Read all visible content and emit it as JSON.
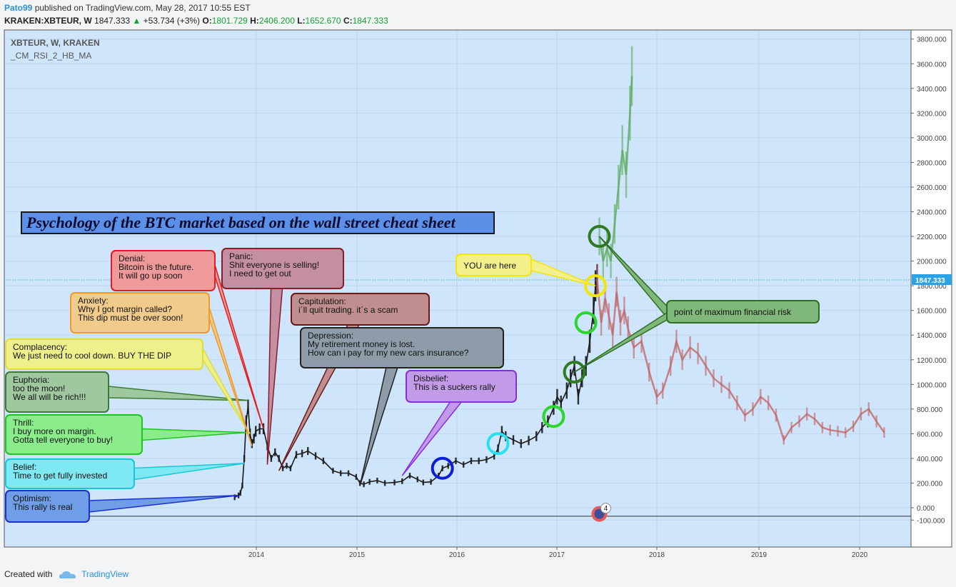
{
  "header": {
    "author": "Pato99",
    "published": "published on TradingView.com, May 28, 2017 10:55 EST"
  },
  "ohlc": {
    "symbol": "KRAKEN:XBTEUR, W",
    "last": "1847.333",
    "change": "+53.734 (+3%)",
    "o_label": "O:",
    "o": "1801.729",
    "h_label": "H:",
    "h": "2406.200",
    "l_label": "L:",
    "l": "1652.670",
    "c_label": "C:",
    "c": "1847.333"
  },
  "panel": {
    "symbol": "XBTEUR, W, KRAKEN",
    "indicator": "_CM_RSI_2_HB_MA"
  },
  "footer": {
    "created_with": "Created with",
    "brand": "TradingView"
  },
  "event_badge": "4",
  "colors": {
    "background": "#cfe5fb",
    "candle_past": "#1a1a1a",
    "candle_future_up": "#5aaa5a",
    "candle_future_down": "#c06060",
    "price_line": "#2a9fd0",
    "price_label_bg": "#2aa3e6"
  },
  "chart_data": {
    "type": "line",
    "title": "Psychology of the BTC market based on the wall street cheat sheet",
    "xlabel": "",
    "ylabel": "",
    "x_ticks": [
      "2014",
      "2015",
      "2016",
      "2017",
      "2018",
      "2019",
      "2020"
    ],
    "y_ticks": [
      "-100.000",
      "0.000",
      "200.000",
      "400.000",
      "600.000",
      "800.000",
      "1000.000",
      "1200.000",
      "1400.000",
      "1600.000",
      "1800.000",
      "2000.000",
      "2200.000",
      "2400.000",
      "2600.000",
      "2800.000",
      "3000.000",
      "3200.000",
      "3400.000",
      "3600.000",
      "3800.000"
    ],
    "ylim": [
      -100,
      3900
    ],
    "last_price_label": "1847.333",
    "last_price": 1847.333,
    "grid": true,
    "series": [
      {
        "name": "",
        "values": [
          [
            "2013-10-14",
            85
          ],
          [
            "2013-10-28",
            100
          ],
          [
            "2013-11-04",
            120
          ],
          [
            "2013-11-11",
            180
          ],
          [
            "2013-11-18",
            400
          ],
          [
            "2013-11-25",
            700
          ],
          [
            "2013-12-02",
            820
          ],
          [
            "2013-12-09",
            600
          ],
          [
            "2013-12-16",
            520
          ],
          [
            "2013-12-23",
            560
          ],
          [
            "2013-12-30",
            620
          ],
          [
            "2014-01-13",
            640
          ],
          [
            "2014-01-27",
            640
          ],
          [
            "2014-02-10",
            500
          ],
          [
            "2014-02-24",
            400
          ],
          [
            "2014-03-10",
            450
          ],
          [
            "2014-03-24",
            400
          ],
          [
            "2014-04-07",
            320
          ],
          [
            "2014-04-21",
            340
          ],
          [
            "2014-05-05",
            320
          ],
          [
            "2014-05-26",
            430
          ],
          [
            "2014-06-16",
            440
          ],
          [
            "2014-07-07",
            460
          ],
          [
            "2014-08-04",
            420
          ],
          [
            "2014-09-01",
            380
          ],
          [
            "2014-10-06",
            300
          ],
          [
            "2014-11-03",
            280
          ],
          [
            "2014-12-01",
            280
          ],
          [
            "2014-12-29",
            250
          ],
          [
            "2015-01-12",
            200
          ],
          [
            "2015-01-26",
            190
          ],
          [
            "2015-02-16",
            210
          ],
          [
            "2015-03-16",
            220
          ],
          [
            "2015-04-13",
            200
          ],
          [
            "2015-05-18",
            205
          ],
          [
            "2015-06-15",
            215
          ],
          [
            "2015-07-13",
            260
          ],
          [
            "2015-08-10",
            230
          ],
          [
            "2015-08-31",
            205
          ],
          [
            "2015-09-28",
            210
          ],
          [
            "2015-10-26",
            260
          ],
          [
            "2015-11-09",
            320
          ],
          [
            "2015-11-30",
            340
          ],
          [
            "2015-12-28",
            380
          ],
          [
            "2016-01-25",
            350
          ],
          [
            "2016-02-22",
            380
          ],
          [
            "2016-03-21",
            380
          ],
          [
            "2016-04-18",
            390
          ],
          [
            "2016-05-16",
            420
          ],
          [
            "2016-05-30",
            480
          ],
          [
            "2016-06-13",
            620
          ],
          [
            "2016-06-27",
            580
          ],
          [
            "2016-07-25",
            550
          ],
          [
            "2016-08-22",
            520
          ],
          [
            "2016-09-19",
            545
          ],
          [
            "2016-10-17",
            580
          ],
          [
            "2016-11-07",
            650
          ],
          [
            "2016-11-28",
            700
          ],
          [
            "2016-12-19",
            810
          ],
          [
            "2017-01-02",
            900
          ],
          [
            "2017-01-16",
            850
          ],
          [
            "2017-02-06",
            950
          ],
          [
            "2017-02-20",
            1050
          ],
          [
            "2017-03-06",
            1150
          ],
          [
            "2017-03-20",
            900
          ],
          [
            "2017-04-03",
            1050
          ],
          [
            "2017-04-17",
            1150
          ],
          [
            "2017-05-01",
            1350
          ],
          [
            "2017-05-15",
            1600
          ],
          [
            "2017-05-22",
            1800
          ],
          [
            "2017-05-28",
            1847
          ]
        ]
      },
      {
        "name": "",
        "values": [
          [
            "2017-06-05",
            2200
          ],
          [
            "2017-06-19",
            2000
          ],
          [
            "2017-07-03",
            2100
          ],
          [
            "2017-07-17",
            2000
          ],
          [
            "2017-07-31",
            2300
          ],
          [
            "2017-08-14",
            2600
          ],
          [
            "2017-08-28",
            2900
          ],
          [
            "2017-09-11",
            2700
          ],
          [
            "2017-09-25",
            3200
          ],
          [
            "2017-10-02",
            3500
          ]
        ]
      },
      {
        "name": "",
        "values": [
          [
            "2017-05-28",
            1847
          ],
          [
            "2017-06-12",
            1500
          ],
          [
            "2017-06-26",
            1700
          ],
          [
            "2017-07-10",
            1550
          ],
          [
            "2017-07-24",
            1400
          ],
          [
            "2017-08-07",
            1750
          ],
          [
            "2017-08-21",
            1500
          ],
          [
            "2017-09-04",
            1600
          ],
          [
            "2017-09-18",
            1450
          ],
          [
            "2017-10-09",
            1300
          ],
          [
            "2017-11-06",
            1350
          ],
          [
            "2017-12-04",
            1100
          ],
          [
            "2018-01-01",
            900
          ],
          [
            "2018-01-22",
            950
          ],
          [
            "2018-02-19",
            1150
          ],
          [
            "2018-03-12",
            1350
          ],
          [
            "2018-04-02",
            1200
          ],
          [
            "2018-04-30",
            1300
          ],
          [
            "2018-05-28",
            1250
          ],
          [
            "2018-06-25",
            1150
          ],
          [
            "2018-07-23",
            1050
          ],
          [
            "2018-08-20",
            1000
          ],
          [
            "2018-09-17",
            950
          ],
          [
            "2018-10-15",
            850
          ],
          [
            "2018-11-12",
            750
          ],
          [
            "2018-12-10",
            800
          ],
          [
            "2019-01-07",
            900
          ],
          [
            "2019-02-04",
            850
          ],
          [
            "2019-03-04",
            750
          ],
          [
            "2019-04-01",
            550
          ],
          [
            "2019-04-29",
            650
          ],
          [
            "2019-05-27",
            700
          ],
          [
            "2019-06-24",
            760
          ],
          [
            "2019-07-22",
            720
          ],
          [
            "2019-08-19",
            650
          ],
          [
            "2019-09-16",
            630
          ],
          [
            "2019-10-14",
            620
          ],
          [
            "2019-11-11",
            610
          ],
          [
            "2019-12-09",
            660
          ],
          [
            "2020-01-06",
            760
          ],
          [
            "2020-02-03",
            800
          ],
          [
            "2020-03-02",
            700
          ],
          [
            "2020-03-30",
            610
          ]
        ]
      }
    ],
    "annotations": [
      {
        "id": "optimism",
        "lines": [
          "Optimism:",
          "This rally is real"
        ],
        "target": [
          "2013-10-28",
          100
        ]
      },
      {
        "id": "belief",
        "lines": [
          "Belief:",
          "Time to get fully invested"
        ],
        "target": [
          "2013-11-18",
          360
        ]
      },
      {
        "id": "thrill",
        "lines": [
          "Thrill:",
          "I buy more on margin.",
          "Gotta tell everyone to buy!"
        ],
        "target": [
          "2013-11-25",
          610
        ]
      },
      {
        "id": "euphoria",
        "lines": [
          "Euphoria:",
          "too the moon!",
          "We all will be rich!!!"
        ],
        "target": [
          "2013-12-02",
          870
        ]
      },
      {
        "id": "complacency",
        "lines": [
          "Complacency:",
          "We just need to cool down. BUY THE DIP"
        ],
        "target": [
          "2013-12-09",
          600
        ]
      },
      {
        "id": "anxiety",
        "lines": [
          "Anxiety:",
          "Why I got margin called?",
          "This dip must be over soon!"
        ],
        "target": [
          "2013-12-16",
          500
        ]
      },
      {
        "id": "denial",
        "lines": [
          "Denial:",
          "Bitcoin is the future.",
          "It will go up soon"
        ],
        "target": [
          "2014-01-27",
          640
        ]
      },
      {
        "id": "panic",
        "lines": [
          "Panic:",
          "Shit everyone is selling!",
          "I need to get out"
        ],
        "target": [
          "2014-02-10",
          350
        ]
      },
      {
        "id": "capitulation",
        "lines": [
          "Capitulation:",
          "i´ll quit trading. it´s a scam"
        ],
        "target": [
          "2014-03-24",
          300
        ]
      },
      {
        "id": "depression",
        "lines": [
          "Depression:",
          "My retirement money is lost.",
          "How can i pay for my new cars insurance?"
        ],
        "target": [
          "2015-01-12",
          180
        ]
      },
      {
        "id": "disbelief",
        "lines": [
          "Disbelief:",
          "This is a suckers rally"
        ],
        "target": [
          "2015-06-15",
          260
        ]
      },
      {
        "id": "you-are-here",
        "lines": [
          "YOU are here"
        ],
        "target": [
          "2017-05-22",
          1800
        ]
      },
      {
        "id": "max-risk",
        "lines": [
          "point of maximum financial risk"
        ],
        "target": [
          "2017-06-05",
          2200
        ]
      }
    ],
    "circles": [
      {
        "date": "2015-11-09",
        "price": 320,
        "color": "#0a1ed6"
      },
      {
        "date": "2016-05-30",
        "price": 520,
        "color": "#28e0ef"
      },
      {
        "date": "2016-12-19",
        "price": 740,
        "color": "#2ed52e"
      },
      {
        "date": "2017-03-06",
        "price": 1100,
        "color": "#2f7a22"
      },
      {
        "date": "2017-04-17",
        "price": 1500,
        "color": "#2ed52e"
      },
      {
        "date": "2017-05-22",
        "price": 1800,
        "color": "#f2e40e"
      },
      {
        "date": "2017-06-05",
        "price": 2200,
        "color": "#2f7a22"
      }
    ]
  }
}
